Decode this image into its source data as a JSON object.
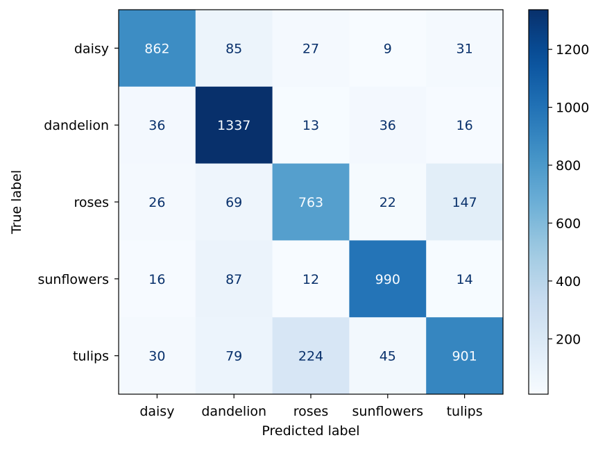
{
  "chart_data": {
    "type": "heatmap",
    "title": "",
    "xlabel": "Predicted label",
    "ylabel": "True label",
    "x_categories": [
      "daisy",
      "dandelion",
      "roses",
      "sunflowers",
      "tulips"
    ],
    "y_categories": [
      "daisy",
      "dandelion",
      "roses",
      "sunflowers",
      "tulips"
    ],
    "matrix": [
      [
        862,
        85,
        27,
        9,
        31
      ],
      [
        36,
        1337,
        13,
        36,
        16
      ],
      [
        26,
        69,
        763,
        22,
        147
      ],
      [
        16,
        87,
        12,
        990,
        14
      ],
      [
        30,
        79,
        224,
        45,
        901
      ]
    ],
    "colormap": "Blues",
    "colorbar": {
      "vmin": 9,
      "vmax": 1337,
      "ticks": [
        200,
        400,
        600,
        800,
        1000,
        1200
      ]
    },
    "colors": {
      "low": "#f7fbff",
      "high": "#08306b",
      "text_dark": "#08306b",
      "text_light": "#f7fbff"
    }
  }
}
